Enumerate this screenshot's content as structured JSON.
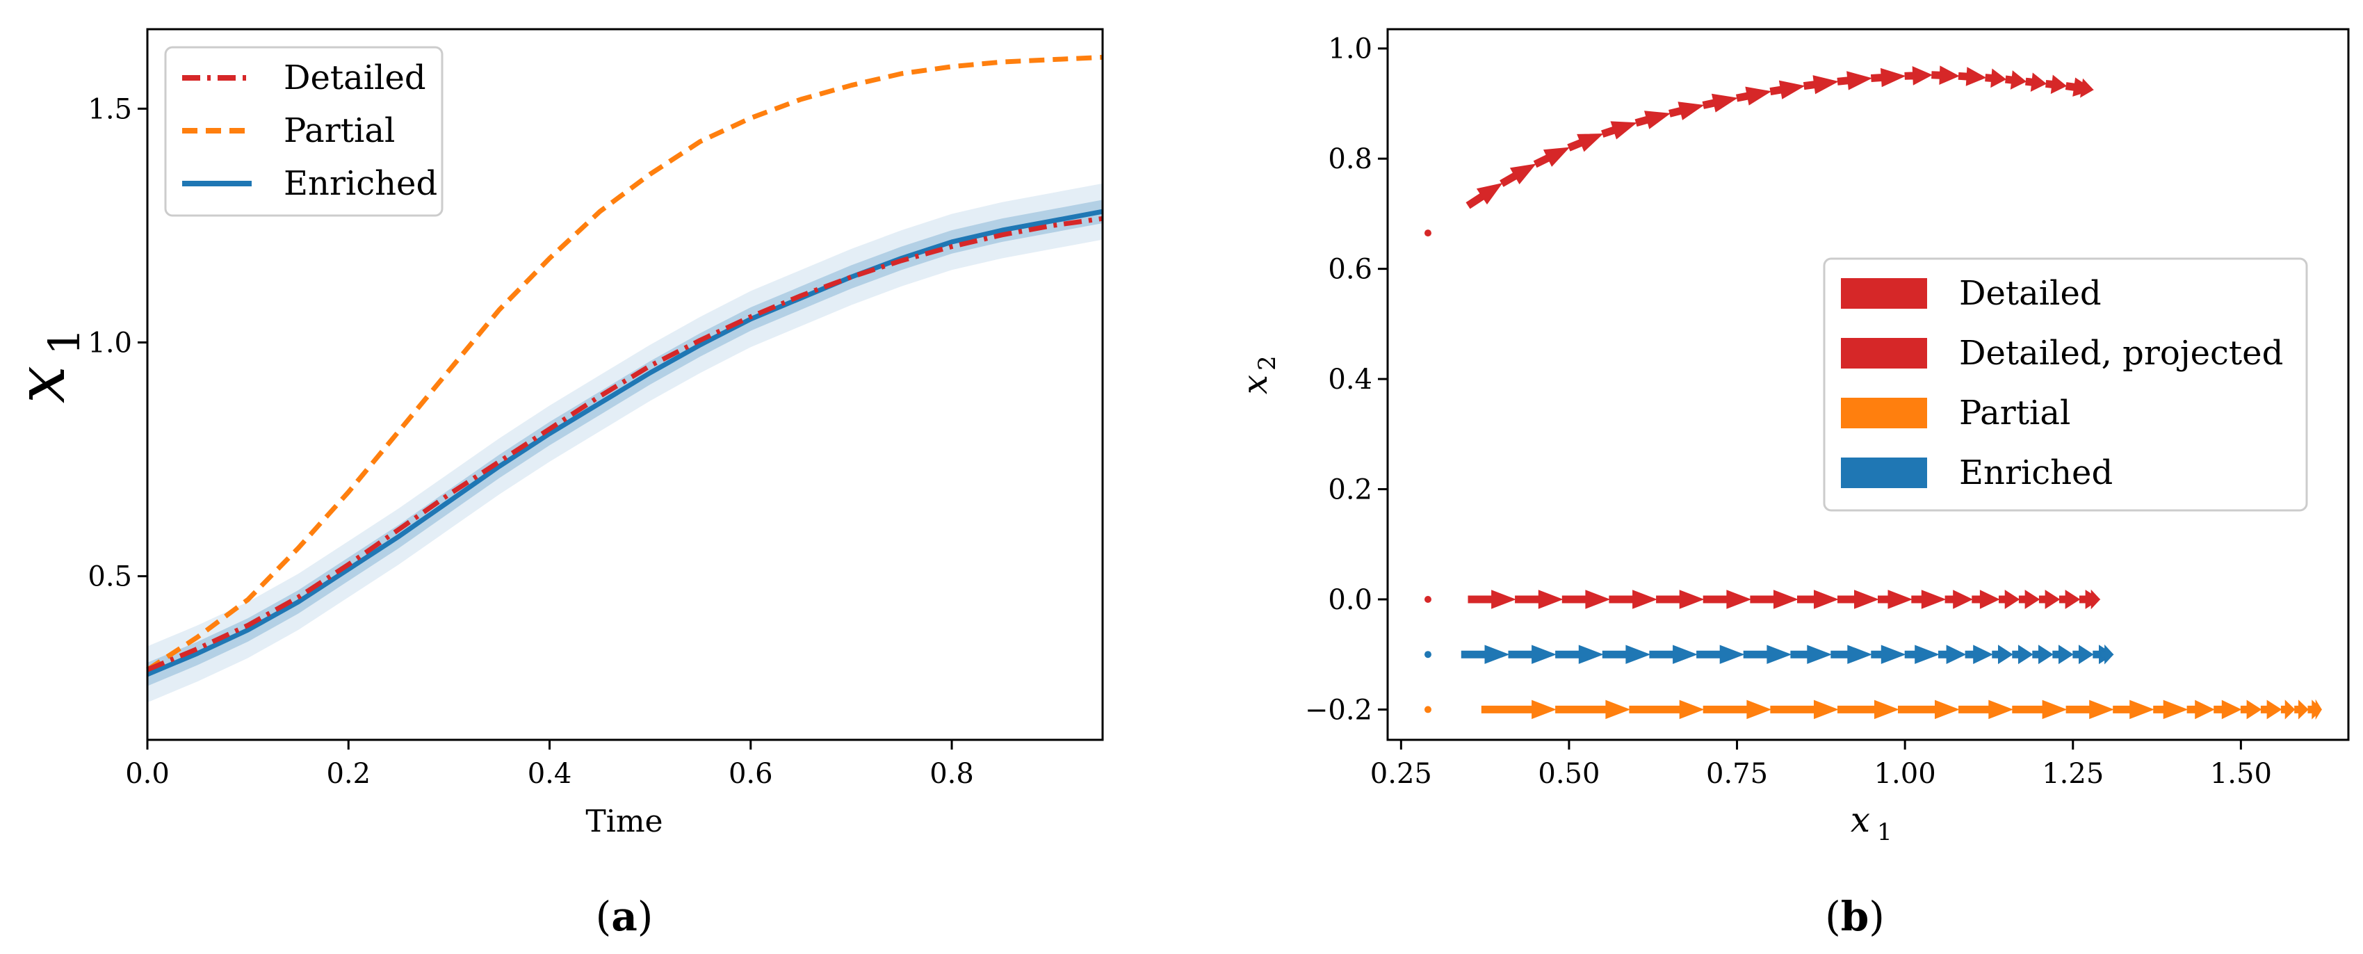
{
  "chart_data": [
    {
      "type": "line",
      "panel": "a",
      "caption_letter": "a",
      "caption_open": "(",
      "caption_close": ")",
      "xlabel": "Time",
      "ylabel": "x",
      "ylabel_sub": "1",
      "xlim": [
        0.0,
        0.95
      ],
      "ylim": [
        0.15,
        1.67
      ],
      "xticks": [
        0.0,
        0.2,
        0.4,
        0.6,
        0.8
      ],
      "xtick_labels": [
        "0.0",
        "0.2",
        "0.4",
        "0.6",
        "0.8"
      ],
      "yticks": [
        0.5,
        1.0,
        1.5
      ],
      "ytick_labels": [
        "0.5",
        "1.0",
        "1.5"
      ],
      "legend_position": "top-left",
      "x": [
        0.0,
        0.05,
        0.1,
        0.15,
        0.2,
        0.25,
        0.3,
        0.35,
        0.4,
        0.45,
        0.5,
        0.55,
        0.6,
        0.65,
        0.7,
        0.75,
        0.8,
        0.85,
        0.9,
        0.95
      ],
      "series": [
        {
          "name": "Detailed",
          "color": "#d62728",
          "style": "dashdot",
          "values": [
            0.3,
            0.345,
            0.395,
            0.455,
            0.525,
            0.6,
            0.675,
            0.745,
            0.815,
            0.885,
            0.95,
            1.005,
            1.055,
            1.1,
            1.14,
            1.175,
            1.205,
            1.23,
            1.25,
            1.265
          ]
        },
        {
          "name": "Partial",
          "color": "#ff7f0e",
          "style": "dashed",
          "values": [
            0.3,
            0.37,
            0.45,
            0.56,
            0.68,
            0.81,
            0.94,
            1.07,
            1.18,
            1.28,
            1.36,
            1.43,
            1.48,
            1.52,
            1.55,
            1.575,
            1.59,
            1.6,
            1.605,
            1.61
          ]
        },
        {
          "name": "Enriched",
          "color": "#1f77b4",
          "style": "solid",
          "values": [
            0.29,
            0.335,
            0.385,
            0.445,
            0.515,
            0.585,
            0.66,
            0.735,
            0.805,
            0.87,
            0.935,
            0.995,
            1.05,
            1.095,
            1.14,
            1.18,
            1.215,
            1.24,
            1.26,
            1.28
          ]
        }
      ],
      "band_inner_halfwidth": 0.025,
      "band_outer_halfwidth": 0.06
    },
    {
      "type": "quiver",
      "panel": "b",
      "caption_letter": "b",
      "caption_open": "(",
      "caption_close": ")",
      "xlabel": "x",
      "xlabel_sub": "1",
      "ylabel": "x",
      "ylabel_sub": "2",
      "xlim": [
        0.23,
        1.66
      ],
      "ylim": [
        -0.255,
        1.035
      ],
      "xticks": [
        0.25,
        0.5,
        0.75,
        1.0,
        1.25,
        1.5
      ],
      "xtick_labels": [
        "0.25",
        "0.50",
        "0.75",
        "1.00",
        "1.25",
        "1.50"
      ],
      "yticks": [
        -0.2,
        0.0,
        0.2,
        0.4,
        0.6,
        0.8,
        1.0
      ],
      "ytick_labels": [
        "−0.2",
        "0.0",
        "0.2",
        "0.4",
        "0.6",
        "0.8",
        "1.0"
      ],
      "legend_position": "center-right",
      "series": [
        {
          "name": "Detailed",
          "color": "#d62728",
          "start_dot": [
            0.29,
            0.665
          ],
          "x": [
            0.35,
            0.4,
            0.45,
            0.5,
            0.55,
            0.6,
            0.65,
            0.7,
            0.75,
            0.8,
            0.85,
            0.9,
            0.95,
            1.0,
            1.04,
            1.08,
            1.12,
            1.15,
            1.18,
            1.21,
            1.24,
            1.28
          ],
          "y": [
            0.715,
            0.755,
            0.79,
            0.82,
            0.845,
            0.865,
            0.882,
            0.897,
            0.91,
            0.922,
            0.932,
            0.94,
            0.946,
            0.95,
            0.952,
            0.95,
            0.947,
            0.944,
            0.94,
            0.936,
            0.932,
            0.925
          ]
        },
        {
          "name": "Detailed, projected",
          "color": "#d62728",
          "start_dot": [
            0.29,
            0.0
          ],
          "x": [
            0.35,
            0.42,
            0.49,
            0.56,
            0.63,
            0.7,
            0.77,
            0.84,
            0.9,
            0.96,
            1.01,
            1.06,
            1.1,
            1.14,
            1.17,
            1.2,
            1.23,
            1.26,
            1.29
          ],
          "y": [
            0.0,
            0.0,
            0.0,
            0.0,
            0.0,
            0.0,
            0.0,
            0.0,
            0.0,
            0.0,
            0.0,
            0.0,
            0.0,
            0.0,
            0.0,
            0.0,
            0.0,
            0.0,
            0.0
          ]
        },
        {
          "name": "Partial",
          "color": "#ff7f0e",
          "start_dot": [
            0.29,
            -0.2
          ],
          "x": [
            0.37,
            0.48,
            0.59,
            0.7,
            0.8,
            0.9,
            0.99,
            1.08,
            1.16,
            1.24,
            1.31,
            1.37,
            1.42,
            1.46,
            1.5,
            1.53,
            1.56,
            1.58,
            1.6,
            1.62
          ],
          "y": [
            -0.2,
            -0.2,
            -0.2,
            -0.2,
            -0.2,
            -0.2,
            -0.2,
            -0.2,
            -0.2,
            -0.2,
            -0.2,
            -0.2,
            -0.2,
            -0.2,
            -0.2,
            -0.2,
            -0.2,
            -0.2,
            -0.2,
            -0.2
          ]
        },
        {
          "name": "Enriched",
          "color": "#1f77b4",
          "start_dot": [
            0.29,
            -0.1
          ],
          "x": [
            0.34,
            0.41,
            0.48,
            0.55,
            0.62,
            0.69,
            0.76,
            0.83,
            0.89,
            0.95,
            1.0,
            1.05,
            1.09,
            1.13,
            1.16,
            1.19,
            1.22,
            1.25,
            1.28,
            1.31
          ],
          "y": [
            -0.1,
            -0.1,
            -0.1,
            -0.1,
            -0.1,
            -0.1,
            -0.1,
            -0.1,
            -0.1,
            -0.1,
            -0.1,
            -0.1,
            -0.1,
            -0.1,
            -0.1,
            -0.1,
            -0.1,
            -0.1,
            -0.1,
            -0.1
          ]
        }
      ]
    }
  ]
}
